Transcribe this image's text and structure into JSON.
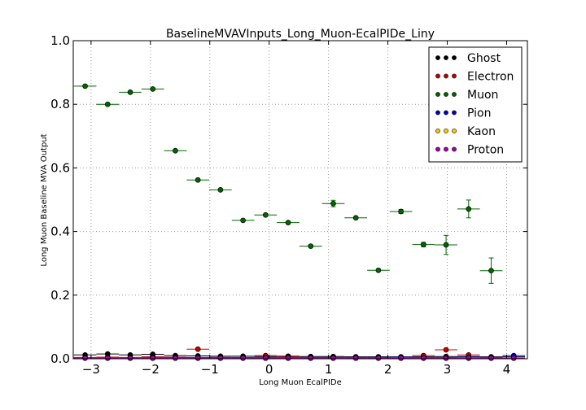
{
  "chart_data": {
    "type": "scatter",
    "title": "BaselineMVAVInputs_Long_Muon-EcalPIDe_Liny",
    "xlabel": "Long Muon EcalPIDe",
    "ylabel": "Long Muon Baseline MVA Output",
    "xlim": [
      -3.3,
      4.35
    ],
    "ylim": [
      0.0,
      1.0
    ],
    "xticks": [
      -3,
      -2,
      -1,
      0,
      1,
      2,
      3,
      4
    ],
    "xtick_labels": [
      "−3",
      "−2",
      "−1",
      "0",
      "1",
      "2",
      "3",
      "4"
    ],
    "yticks": [
      0.0,
      0.2,
      0.4,
      0.6,
      0.8,
      1.0
    ],
    "ytick_labels": [
      "0.0",
      "0.2",
      "0.4",
      "0.6",
      "0.8",
      "1.0"
    ],
    "grid": true,
    "legend_position": "top-right",
    "bin_half_width": 0.19,
    "series": [
      {
        "name": "Ghost",
        "color": "#000000",
        "x": [
          -3.1,
          -2.72,
          -2.34,
          -1.96,
          -1.58,
          -1.2,
          -0.82,
          -0.44,
          -0.06,
          0.32,
          0.7,
          1.08,
          1.46,
          1.84,
          2.22,
          2.6,
          2.98,
          3.36,
          3.74,
          4.12
        ],
        "y": [
          0.012,
          0.015,
          0.012,
          0.014,
          0.01,
          0.009,
          0.008,
          0.008,
          0.007,
          0.008,
          0.007,
          0.007,
          0.006,
          0.006,
          0.006,
          0.006,
          0.007,
          0.007,
          0.006,
          0.006
        ],
        "yerr": [
          0.002,
          0.002,
          0.002,
          0.002,
          0.002,
          0.002,
          0.002,
          0.002,
          0.002,
          0.002,
          0.002,
          0.002,
          0.002,
          0.002,
          0.002,
          0.002,
          0.002,
          0.002,
          0.002,
          0.002
        ]
      },
      {
        "name": "Electron",
        "color": "#cc0000",
        "x": [
          -3.1,
          -2.72,
          -2.34,
          -1.96,
          -1.58,
          -1.2,
          -0.82,
          -0.44,
          -0.06,
          0.32,
          0.7,
          1.08,
          1.46,
          1.84,
          2.22,
          2.6,
          2.98,
          3.36,
          3.74,
          4.12
        ],
        "y": [
          0.004,
          0.005,
          0.004,
          0.006,
          0.005,
          0.03,
          0.004,
          0.003,
          0.01,
          0.006,
          0.003,
          0.004,
          0.003,
          0.003,
          0.004,
          0.01,
          0.028,
          0.012,
          0.004,
          0.003
        ],
        "yerr": [
          0.001,
          0.001,
          0.001,
          0.001,
          0.001,
          0.003,
          0.001,
          0.001,
          0.002,
          0.001,
          0.001,
          0.001,
          0.001,
          0.001,
          0.001,
          0.002,
          0.003,
          0.002,
          0.001,
          0.001
        ]
      },
      {
        "name": "Muon",
        "color": "#006600",
        "x": [
          -3.1,
          -2.72,
          -2.34,
          -1.96,
          -1.58,
          -1.2,
          -0.82,
          -0.44,
          -0.06,
          0.32,
          0.7,
          1.08,
          1.46,
          1.84,
          2.22,
          2.6,
          2.98,
          3.36,
          3.74
        ],
        "y": [
          0.857,
          0.8,
          0.838,
          0.848,
          0.654,
          0.562,
          0.531,
          0.435,
          0.452,
          0.428,
          0.354,
          0.488,
          0.443,
          0.278,
          0.463,
          0.359,
          0.358,
          0.471,
          0.277
        ],
        "yerr": [
          0.002,
          0.003,
          0.003,
          0.003,
          0.004,
          0.004,
          0.004,
          0.004,
          0.004,
          0.005,
          0.005,
          0.01,
          0.005,
          0.005,
          0.006,
          0.007,
          0.03,
          0.028,
          0.04
        ]
      },
      {
        "name": "Pion",
        "color": "#0000cc",
        "x": [
          -3.1,
          -2.72,
          -2.34,
          -1.96,
          -1.58,
          -1.2,
          -0.82,
          -0.44,
          -0.06,
          0.32,
          0.7,
          1.08,
          1.46,
          1.84,
          2.22,
          2.6,
          2.98,
          3.36,
          3.74,
          4.12
        ],
        "y": [
          0.003,
          0.003,
          0.003,
          0.004,
          0.004,
          0.004,
          0.004,
          0.004,
          0.004,
          0.004,
          0.004,
          0.004,
          0.004,
          0.004,
          0.005,
          0.004,
          0.004,
          0.005,
          0.004,
          0.01
        ],
        "yerr": [
          0.001,
          0.001,
          0.001,
          0.001,
          0.001,
          0.001,
          0.001,
          0.001,
          0.001,
          0.001,
          0.001,
          0.001,
          0.001,
          0.001,
          0.001,
          0.001,
          0.001,
          0.001,
          0.001,
          0.002
        ]
      },
      {
        "name": "Kaon",
        "color": "#ffcc00",
        "x": [
          -3.1,
          -2.72,
          -2.34,
          -1.96,
          -1.58,
          -1.2,
          -0.82,
          -0.44,
          -0.06,
          0.32,
          0.7,
          1.08,
          1.46,
          1.84,
          2.22,
          2.6,
          2.98,
          3.36,
          3.74,
          4.12
        ],
        "y": [
          0.002,
          0.002,
          0.002,
          0.002,
          0.002,
          0.002,
          0.002,
          0.002,
          0.002,
          0.002,
          0.002,
          0.002,
          0.002,
          0.002,
          0.002,
          0.002,
          0.002,
          0.002,
          0.002,
          0.002
        ],
        "yerr": [
          0.001,
          0.001,
          0.001,
          0.001,
          0.001,
          0.001,
          0.001,
          0.001,
          0.001,
          0.001,
          0.001,
          0.001,
          0.001,
          0.001,
          0.001,
          0.001,
          0.001,
          0.001,
          0.001,
          0.001
        ]
      },
      {
        "name": "Proton",
        "color": "#aa00aa",
        "x": [
          -3.1,
          -2.72,
          -2.34,
          -1.96,
          -1.58,
          -1.2,
          -0.82,
          -0.44,
          -0.06,
          0.32,
          0.7,
          1.08,
          1.46,
          1.84,
          2.22,
          2.6,
          2.98,
          3.36,
          3.74,
          4.12
        ],
        "y": [
          0.002,
          0.002,
          0.002,
          0.002,
          0.002,
          0.002,
          0.002,
          0.002,
          0.002,
          0.002,
          0.002,
          0.002,
          0.002,
          0.002,
          0.002,
          0.002,
          0.002,
          0.002,
          0.002,
          0.002
        ],
        "yerr": [
          0.001,
          0.001,
          0.001,
          0.001,
          0.001,
          0.001,
          0.001,
          0.001,
          0.001,
          0.001,
          0.001,
          0.001,
          0.001,
          0.001,
          0.001,
          0.001,
          0.001,
          0.001,
          0.001,
          0.001
        ]
      }
    ]
  }
}
